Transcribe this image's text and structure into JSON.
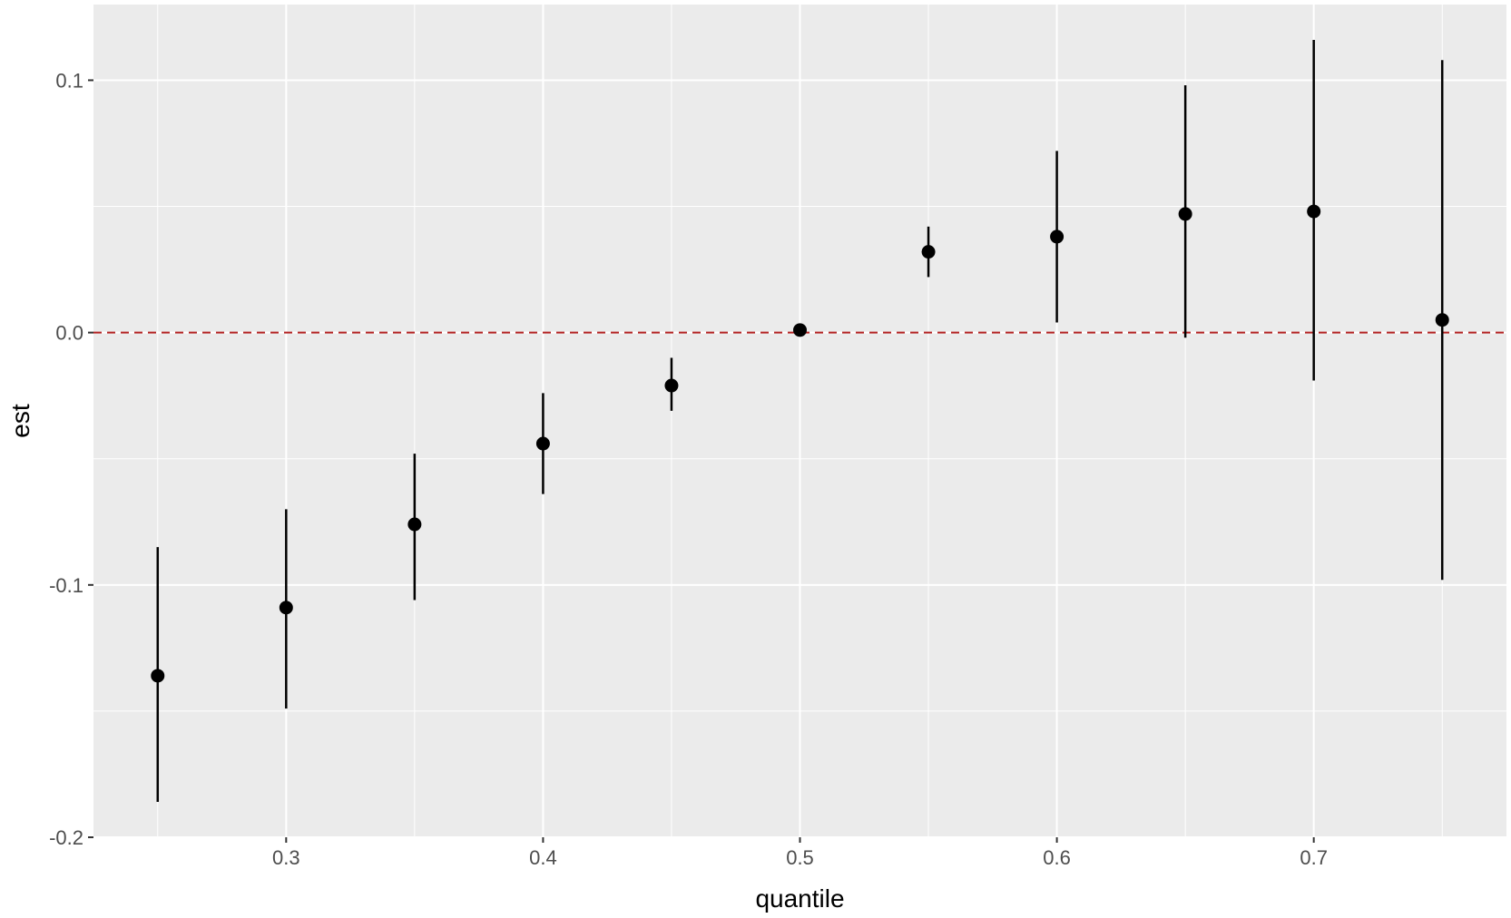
{
  "chart_data": {
    "type": "scatter",
    "title": "",
    "xlabel": "quantile",
    "ylabel": "est",
    "xlim": [
      0.225,
      0.775
    ],
    "ylim": [
      -0.2,
      0.13
    ],
    "x_ticks": [
      0.3,
      0.4,
      0.5,
      0.6,
      0.7
    ],
    "x_tick_labels": [
      "0.3",
      "0.4",
      "0.5",
      "0.6",
      "0.7"
    ],
    "y_ticks": [
      -0.2,
      -0.1,
      0.0,
      0.1
    ],
    "y_tick_labels": [
      "-0.2",
      "-0.1",
      "0.0",
      "0.1"
    ],
    "x_minor_gridlines": [
      0.25,
      0.35,
      0.45,
      0.55,
      0.65,
      0.75
    ],
    "y_minor_gridlines": [
      -0.15,
      -0.05,
      0.05
    ],
    "grid": true,
    "reference_line": {
      "y": 0.0,
      "style": "dashed",
      "color": "#b22222"
    },
    "colors": {
      "panel": "#ebebeb",
      "grid": "#ffffff",
      "point": "#000000"
    },
    "points": [
      {
        "x": 0.25,
        "y": -0.136,
        "lower": -0.186,
        "upper": -0.085
      },
      {
        "x": 0.3,
        "y": -0.109,
        "lower": -0.149,
        "upper": -0.07
      },
      {
        "x": 0.35,
        "y": -0.076,
        "lower": -0.106,
        "upper": -0.048
      },
      {
        "x": 0.4,
        "y": -0.044,
        "lower": -0.064,
        "upper": -0.024
      },
      {
        "x": 0.45,
        "y": -0.021,
        "lower": -0.031,
        "upper": -0.01
      },
      {
        "x": 0.5,
        "y": 0.001,
        "lower": 0.001,
        "upper": 0.001
      },
      {
        "x": 0.55,
        "y": 0.032,
        "lower": 0.022,
        "upper": 0.042
      },
      {
        "x": 0.6,
        "y": 0.038,
        "lower": 0.004,
        "upper": 0.072
      },
      {
        "x": 0.65,
        "y": 0.047,
        "lower": -0.002,
        "upper": 0.098
      },
      {
        "x": 0.7,
        "y": 0.048,
        "lower": -0.019,
        "upper": 0.116
      },
      {
        "x": 0.75,
        "y": 0.005,
        "lower": -0.098,
        "upper": 0.108
      }
    ]
  }
}
